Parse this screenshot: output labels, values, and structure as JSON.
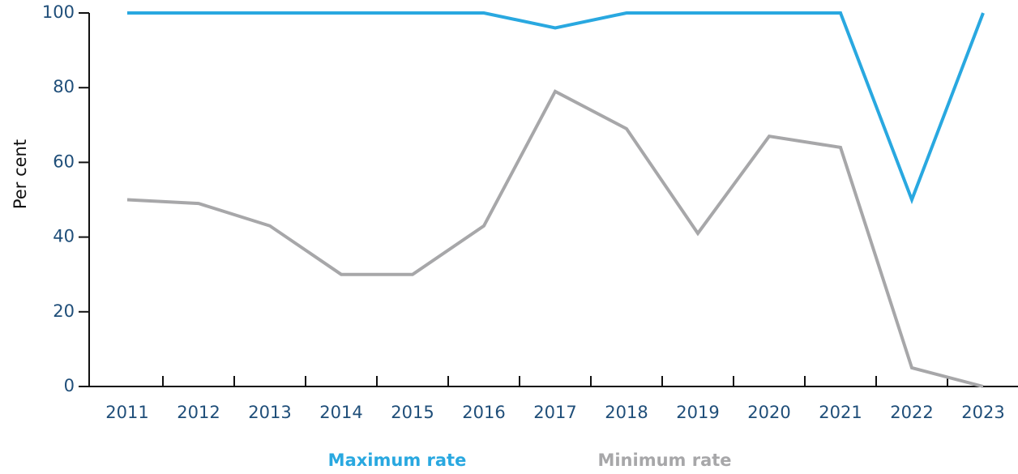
{
  "chart_data": {
    "type": "line",
    "y_label": "Per cent",
    "categories": [
      "2011",
      "2012",
      "2013",
      "2014",
      "2015",
      "2016",
      "2017",
      "2018",
      "2019",
      "2020",
      "2021",
      "2022",
      "2023"
    ],
    "series": [
      {
        "name": "Maximum rate",
        "color": "#29a8e0",
        "values": [
          100,
          100,
          100,
          100,
          100,
          100,
          96,
          100,
          100,
          100,
          100,
          50,
          100
        ]
      },
      {
        "name": "Minimum rate",
        "color": "#a7a7a9",
        "values": [
          50,
          49,
          43,
          30,
          30,
          43,
          79,
          69,
          41,
          67,
          64,
          5,
          0
        ]
      }
    ],
    "ylim": [
      0,
      100
    ],
    "yticks": [
      0,
      20,
      40,
      60,
      80,
      100
    ],
    "grid": false,
    "legend": "bottom"
  }
}
